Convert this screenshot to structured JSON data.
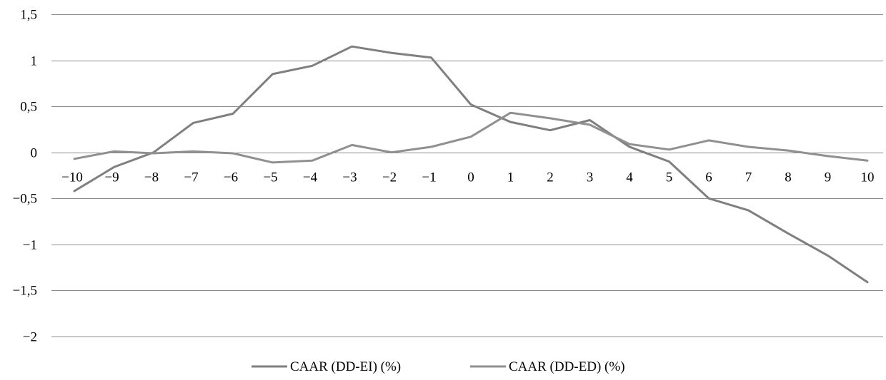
{
  "chart_data": {
    "type": "line",
    "title": "",
    "xlabel": "",
    "ylabel": "",
    "x": [
      -10,
      -9,
      -8,
      -7,
      -6,
      -5,
      -4,
      -3,
      -2,
      -1,
      0,
      1,
      2,
      3,
      4,
      5,
      6,
      7,
      8,
      9,
      10
    ],
    "x_tick_labels": [
      "−10",
      "−9",
      "−8",
      "−7",
      "−6",
      "−5",
      "−4",
      "−3",
      "−2",
      "−1",
      "0",
      "1",
      "2",
      "3",
      "4",
      "5",
      "6",
      "7",
      "8",
      "9",
      "10"
    ],
    "ylim": [
      -2,
      1.5
    ],
    "y_ticks": [
      1.5,
      1,
      0.5,
      0,
      -0.5,
      -1,
      -1.5,
      -2
    ],
    "y_tick_labels": [
      "1,5",
      "1",
      "0,5",
      "0",
      "−0,5",
      "−1",
      "−1,5",
      "−2"
    ],
    "grid": "horizontal",
    "legend_position": "bottom",
    "series": [
      {
        "name": "CAAR (DD-EI) (%)",
        "color": "#7f7f7f",
        "values": [
          -0.42,
          -0.16,
          0.0,
          0.32,
          0.42,
          0.85,
          0.94,
          1.15,
          1.08,
          1.03,
          0.52,
          0.33,
          0.24,
          0.35,
          0.06,
          -0.1,
          -0.5,
          -0.63,
          -0.88,
          -1.12,
          -1.41
        ]
      },
      {
        "name": "CAAR (DD-ED) (%)",
        "color": "#909090",
        "values": [
          -0.07,
          0.01,
          -0.01,
          0.01,
          -0.01,
          -0.11,
          -0.09,
          0.08,
          0.0,
          0.06,
          0.17,
          0.43,
          0.37,
          0.3,
          0.09,
          0.03,
          0.13,
          0.06,
          0.02,
          -0.04,
          -0.09
        ]
      }
    ]
  }
}
